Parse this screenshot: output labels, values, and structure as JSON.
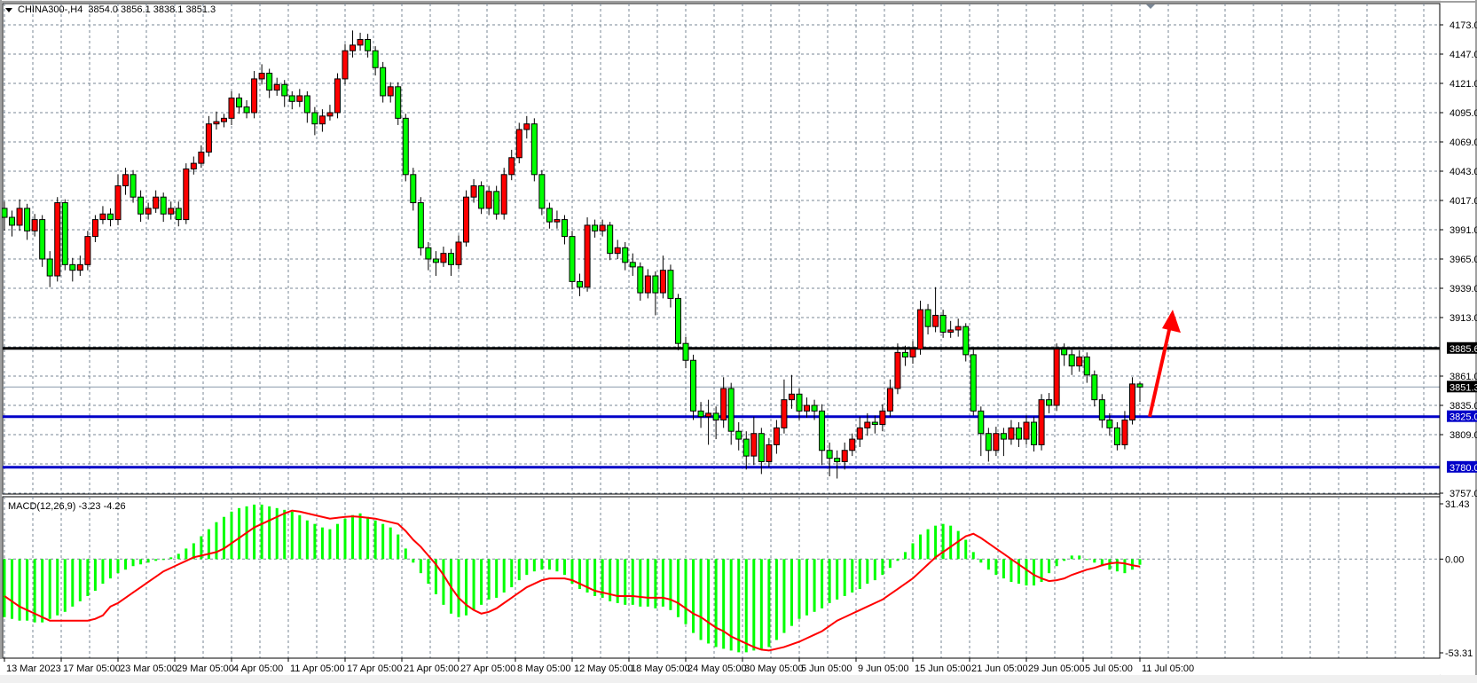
{
  "window": {
    "symbol_timeframe": "CHINA300-,H4",
    "ohlc_readout": "3854.0 3856.1 3838.1 3851.3"
  },
  "colors": {
    "bull_candle": "#ff0000",
    "bear_candle": "#00ff00",
    "candle_outline": "#000000",
    "grid": "#7a8796",
    "resistance_line": "#000000",
    "support_line": "#0000c8",
    "current_price_line": "#8899aa",
    "macd_histogram": "#00ff00",
    "macd_signal": "#ff0000",
    "arrow": "#ff0000"
  },
  "chart_data": {
    "type": "candlestick",
    "symbol": "CHINA300-",
    "timeframe": "H4",
    "grid": true,
    "ylim": [
      3757,
      4173
    ],
    "price_ticks": [
      "4173.0",
      "4147.0",
      "4121.0",
      "4095.0",
      "4069.0",
      "4043.0",
      "4017.0",
      "3991.0",
      "3965.0",
      "3939.0",
      "3913.0",
      "3861.0",
      "3835.0",
      "3809.0",
      "3757.0"
    ],
    "x_tick_labels": [
      "13 Mar 2023",
      "17 Mar 05:00",
      "23 Mar 05:00",
      "29 Mar 05:00",
      "4 Apr 05:00",
      "11 Apr 05:00",
      "17 Apr 05:00",
      "21 Apr 05:00",
      "27 Apr 05:00",
      "8 May 05:00",
      "12 May 05:00",
      "18 May 05:00",
      "24 May 05:00",
      "30 May 05:00",
      "5 Jun 05:00",
      "9 Jun 05:00",
      "15 Jun 05:00",
      "21 Jun 05:00",
      "29 Jun 05:00",
      "5 Jul 05:00",
      "11 Jul 05:00"
    ],
    "ohlc_fields": [
      "open",
      "high",
      "low",
      "close"
    ],
    "ohlc": [
      [
        4010,
        4016,
        3990,
        4002
      ],
      [
        4002,
        4008,
        3985,
        3995
      ],
      [
        3995,
        4018,
        3990,
        4010
      ],
      [
        4010,
        4014,
        3982,
        3990
      ],
      [
        3990,
        4005,
        3985,
        4000
      ],
      [
        4000,
        4004,
        3958,
        3965
      ],
      [
        3965,
        3972,
        3940,
        3950
      ],
      [
        3950,
        4020,
        3945,
        4015
      ],
      [
        4015,
        4018,
        3955,
        3960
      ],
      [
        3960,
        3966,
        3945,
        3955
      ],
      [
        3955,
        3968,
        3950,
        3960
      ],
      [
        3960,
        3990,
        3955,
        3985
      ],
      [
        3985,
        4004,
        3980,
        4000
      ],
      [
        4000,
        4012,
        3996,
        4005
      ],
      [
        4005,
        4010,
        3994,
        4000
      ],
      [
        4000,
        4040,
        3995,
        4030
      ],
      [
        4030,
        4046,
        4022,
        4040
      ],
      [
        4040,
        4044,
        4015,
        4020
      ],
      [
        4020,
        4026,
        3998,
        4005
      ],
      [
        4005,
        4015,
        4000,
        4010
      ],
      [
        4010,
        4026,
        4006,
        4020
      ],
      [
        4020,
        4024,
        3998,
        4005
      ],
      [
        4005,
        4016,
        4000,
        4010
      ],
      [
        4010,
        4016,
        3994,
        4000
      ],
      [
        4000,
        4050,
        3996,
        4045
      ],
      [
        4045,
        4056,
        4040,
        4050
      ],
      [
        4050,
        4066,
        4046,
        4060
      ],
      [
        4060,
        4092,
        4056,
        4085
      ],
      [
        4085,
        4096,
        4080,
        4087
      ],
      [
        4087,
        4094,
        4082,
        4090
      ],
      [
        4090,
        4114,
        4084,
        4108
      ],
      [
        4108,
        4112,
        4094,
        4100
      ],
      [
        4100,
        4106,
        4090,
        4095
      ],
      [
        4095,
        4132,
        4090,
        4125
      ],
      [
        4125,
        4138,
        4120,
        4130
      ],
      [
        4130,
        4134,
        4108,
        4115
      ],
      [
        4115,
        4126,
        4110,
        4120
      ],
      [
        4120,
        4124,
        4100,
        4110
      ],
      [
        4110,
        4114,
        4098,
        4105
      ],
      [
        4105,
        4116,
        4100,
        4110
      ],
      [
        4110,
        4114,
        4086,
        4095
      ],
      [
        4095,
        4100,
        4075,
        4085
      ],
      [
        4085,
        4098,
        4078,
        4092
      ],
      [
        4092,
        4102,
        4088,
        4095
      ],
      [
        4095,
        4130,
        4090,
        4125
      ],
      [
        4125,
        4156,
        4120,
        4150
      ],
      [
        4150,
        4168,
        4144,
        4155
      ],
      [
        4155,
        4166,
        4150,
        4160
      ],
      [
        4160,
        4165,
        4144,
        4150
      ],
      [
        4150,
        4154,
        4128,
        4135
      ],
      [
        4135,
        4140,
        4104,
        4110
      ],
      [
        4110,
        4122,
        4104,
        4118
      ],
      [
        4118,
        4122,
        4084,
        4090
      ],
      [
        4090,
        4094,
        4034,
        4040
      ],
      [
        4040,
        4046,
        4008,
        4015
      ],
      [
        4015,
        4020,
        3968,
        3975
      ],
      [
        3975,
        3980,
        3955,
        3965
      ],
      [
        3965,
        3972,
        3950,
        3962
      ],
      [
        3962,
        3976,
        3958,
        3970
      ],
      [
        3970,
        3974,
        3950,
        3960
      ],
      [
        3960,
        3986,
        3956,
        3980
      ],
      [
        3980,
        4026,
        3976,
        4020
      ],
      [
        4020,
        4036,
        4015,
        4030
      ],
      [
        4030,
        4034,
        4005,
        4010
      ],
      [
        4010,
        4030,
        4004,
        4025
      ],
      [
        4025,
        4030,
        4000,
        4005
      ],
      [
        4005,
        4046,
        4000,
        4040
      ],
      [
        4040,
        4062,
        4035,
        4055
      ],
      [
        4055,
        4086,
        4050,
        4080
      ],
      [
        4080,
        4092,
        4072,
        4085
      ],
      [
        4085,
        4090,
        4034,
        4040
      ],
      [
        4040,
        4044,
        4004,
        4010
      ],
      [
        4010,
        4015,
        3992,
        3998
      ],
      [
        3998,
        4008,
        3992,
        4000
      ],
      [
        4000,
        4004,
        3978,
        3985
      ],
      [
        3985,
        3990,
        3938,
        3945
      ],
      [
        3945,
        3952,
        3932,
        3940
      ],
      [
        3940,
        4002,
        3936,
        3995
      ],
      [
        3995,
        4000,
        3984,
        3990
      ],
      [
        3990,
        4000,
        3985,
        3995
      ],
      [
        3995,
        3998,
        3964,
        3970
      ],
      [
        3970,
        3982,
        3965,
        3975
      ],
      [
        3975,
        3980,
        3955,
        3962
      ],
      [
        3962,
        3970,
        3950,
        3958
      ],
      [
        3958,
        3962,
        3928,
        3935
      ],
      [
        3935,
        3956,
        3930,
        3950
      ],
      [
        3950,
        3954,
        3915,
        3935
      ],
      [
        3935,
        3968,
        3930,
        3955
      ],
      [
        3955,
        3960,
        3922,
        3930
      ],
      [
        3930,
        3934,
        3884,
        3890
      ],
      [
        3890,
        3896,
        3868,
        3875
      ],
      [
        3875,
        3880,
        3822,
        3830
      ],
      [
        3830,
        3838,
        3815,
        3825
      ],
      [
        3825,
        3840,
        3800,
        3828
      ],
      [
        3828,
        3834,
        3805,
        3822
      ],
      [
        3822,
        3860,
        3815,
        3850
      ],
      [
        3850,
        3855,
        3800,
        3812
      ],
      [
        3812,
        3820,
        3795,
        3805
      ],
      [
        3805,
        3812,
        3778,
        3790
      ],
      [
        3790,
        3825,
        3782,
        3810
      ],
      [
        3810,
        3815,
        3774,
        3785
      ],
      [
        3785,
        3806,
        3780,
        3800
      ],
      [
        3800,
        3822,
        3792,
        3815
      ],
      [
        3815,
        3858,
        3810,
        3840
      ],
      [
        3840,
        3862,
        3832,
        3845
      ],
      [
        3845,
        3850,
        3822,
        3830
      ],
      [
        3830,
        3842,
        3824,
        3835
      ],
      [
        3835,
        3840,
        3822,
        3830
      ],
      [
        3830,
        3836,
        3782,
        3795
      ],
      [
        3795,
        3802,
        3772,
        3788
      ],
      [
        3788,
        3795,
        3770,
        3785
      ],
      [
        3785,
        3802,
        3778,
        3795
      ],
      [
        3795,
        3810,
        3790,
        3805
      ],
      [
        3805,
        3825,
        3798,
        3815
      ],
      [
        3815,
        3828,
        3808,
        3820
      ],
      [
        3820,
        3826,
        3810,
        3818
      ],
      [
        3818,
        3836,
        3812,
        3830
      ],
      [
        3830,
        3858,
        3825,
        3850
      ],
      [
        3850,
        3890,
        3845,
        3882
      ],
      [
        3882,
        3888,
        3870,
        3878
      ],
      [
        3878,
        3892,
        3872,
        3885
      ],
      [
        3885,
        3928,
        3880,
        3920
      ],
      [
        3920,
        3925,
        3898,
        3905
      ],
      [
        3905,
        3940,
        3900,
        3915
      ],
      [
        3915,
        3920,
        3895,
        3900
      ],
      [
        3900,
        3910,
        3895,
        3902
      ],
      [
        3902,
        3912,
        3896,
        3905
      ],
      [
        3905,
        3908,
        3874,
        3880
      ],
      [
        3880,
        3885,
        3826,
        3830
      ],
      [
        3830,
        3834,
        3790,
        3810
      ],
      [
        3810,
        3815,
        3785,
        3795
      ],
      [
        3795,
        3816,
        3790,
        3810
      ],
      [
        3810,
        3815,
        3790,
        3805
      ],
      [
        3805,
        3822,
        3800,
        3815
      ],
      [
        3815,
        3820,
        3798,
        3805
      ],
      [
        3805,
        3826,
        3800,
        3820
      ],
      [
        3820,
        3825,
        3794,
        3800
      ],
      [
        3800,
        3845,
        3795,
        3840
      ],
      [
        3840,
        3846,
        3828,
        3835
      ],
      [
        3835,
        3890,
        3830,
        3885
      ],
      [
        3885,
        3890,
        3870,
        3880
      ],
      [
        3880,
        3886,
        3862,
        3870
      ],
      [
        3870,
        3884,
        3865,
        3878
      ],
      [
        3878,
        3882,
        3855,
        3862
      ],
      [
        3862,
        3866,
        3834,
        3840
      ],
      [
        3840,
        3845,
        3815,
        3822
      ],
      [
        3822,
        3828,
        3808,
        3815
      ],
      [
        3815,
        3820,
        3795,
        3800
      ],
      [
        3800,
        3830,
        3796,
        3822
      ],
      [
        3822,
        3860,
        3818,
        3854
      ],
      [
        3854.0,
        3856.1,
        3838.1,
        3851.3
      ]
    ],
    "horizontal_lines": [
      {
        "price": 3885.6,
        "label": "3885.6",
        "color": "#000000"
      },
      {
        "price": 3825.0,
        "label": "3825.0",
        "color": "#0000c8"
      },
      {
        "price": 3780.0,
        "label": "3780.0",
        "color": "#0000c8"
      }
    ],
    "current_price": {
      "price": 3851.3,
      "label": "3851.3"
    },
    "arrow": {
      "direction": "up",
      "from_price": 3825,
      "to_price": 3920,
      "color": "#ff0000"
    },
    "macd": {
      "title": "MACD(12,26,9) -3.23 -4.26",
      "params": [
        12,
        26,
        9
      ],
      "main_value": -3.23,
      "signal_value": -4.26,
      "ylim": [
        -53.31,
        31.43
      ],
      "axis_ticks": [
        "31.43",
        "0.00",
        "-53.31"
      ],
      "histogram": [
        -33,
        -34,
        -35,
        -35,
        -36,
        -36,
        -34,
        -32,
        -30,
        -27,
        -24,
        -21,
        -18,
        -14,
        -11,
        -8,
        -6,
        -4,
        -3,
        -2,
        -1,
        0,
        1,
        3,
        6,
        9,
        13,
        17,
        21,
        24,
        27,
        29,
        30,
        31,
        31,
        30,
        29,
        28,
        27,
        25,
        22,
        20,
        18,
        17,
        20,
        23,
        25,
        26,
        24,
        22,
        20,
        18,
        14,
        6,
        -2,
        -8,
        -14,
        -20,
        -26,
        -31,
        -33,
        -32,
        -29,
        -26,
        -23,
        -22,
        -19,
        -16,
        -12,
        -9,
        -7,
        -6,
        -6,
        -7,
        -9,
        -14,
        -17,
        -19,
        -21,
        -22,
        -24,
        -25,
        -26,
        -26,
        -27,
        -27,
        -28,
        -27,
        -29,
        -33,
        -37,
        -42,
        -46,
        -48,
        -50,
        -51,
        -52,
        -53,
        -53,
        -52,
        -51,
        -50,
        -46,
        -42,
        -38,
        -34,
        -32,
        -30,
        -28,
        -25,
        -23,
        -21,
        -19,
        -17,
        -14,
        -12,
        -9,
        -5,
        -1,
        4,
        9,
        14,
        17,
        19,
        20,
        19,
        16,
        11,
        4,
        -2,
        -6,
        -9,
        -11,
        -13,
        -14,
        -15,
        -15,
        -13,
        -8,
        -4,
        -1,
        2,
        2,
        0,
        -2,
        -4,
        -6,
        -7,
        -8,
        -6,
        -3.23
      ],
      "signal": [
        -21,
        -24,
        -27,
        -29,
        -31,
        -33,
        -35,
        -35,
        -35,
        -35,
        -35,
        -35,
        -34,
        -32,
        -27,
        -25,
        -22,
        -19,
        -16,
        -13,
        -10,
        -7,
        -5,
        -3,
        -1,
        1,
        2,
        3,
        4,
        6,
        9,
        12,
        15,
        18,
        20,
        22,
        24,
        26,
        27.6,
        27,
        26,
        25,
        24,
        23,
        23.5,
        24,
        24.3,
        24,
        23.5,
        23,
        22,
        21,
        20,
        16,
        11,
        7,
        2,
        -3,
        -9,
        -16,
        -22,
        -26,
        -29,
        -31,
        -30,
        -28,
        -25,
        -22,
        -19,
        -16,
        -14,
        -12,
        -11,
        -11,
        -11,
        -12,
        -14,
        -16,
        -18,
        -19,
        -20,
        -21,
        -21,
        -21,
        -21.5,
        -22,
        -22,
        -22,
        -23,
        -25,
        -28,
        -31,
        -33,
        -36,
        -39,
        -41,
        -44,
        -46,
        -48,
        -50,
        -51.5,
        -52,
        -51,
        -50,
        -48.5,
        -47,
        -45,
        -43,
        -41,
        -38,
        -35,
        -33,
        -31,
        -29,
        -27,
        -25,
        -23,
        -20,
        -17,
        -14,
        -11,
        -7,
        -3,
        1,
        4,
        7,
        10,
        13,
        14.4,
        12,
        9,
        6,
        3,
        0,
        -3,
        -6,
        -9,
        -11,
        -12.5,
        -12,
        -11,
        -9,
        -7.5,
        -6,
        -5,
        -3.5,
        -2.5,
        -2,
        -2.5,
        -3.5,
        -4.26
      ]
    }
  }
}
